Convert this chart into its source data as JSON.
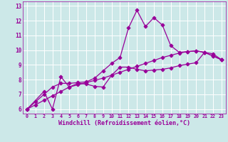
{
  "xlabel": "Windchill (Refroidissement éolien,°C)",
  "bg_color": "#cce8e8",
  "line_color": "#990099",
  "x_min": 0,
  "x_max": 23,
  "y_min": 6,
  "y_max": 13,
  "x_ticks": [
    0,
    1,
    2,
    3,
    4,
    5,
    6,
    7,
    8,
    9,
    10,
    11,
    12,
    13,
    14,
    15,
    16,
    17,
    18,
    19,
    20,
    21,
    22,
    23
  ],
  "y_ticks": [
    6,
    7,
    8,
    9,
    10,
    11,
    12,
    13
  ],
  "series1_x": [
    0,
    1,
    2,
    3,
    4,
    5,
    6,
    7,
    8,
    9,
    10,
    11,
    12,
    13,
    14,
    15,
    16,
    17,
    18,
    19,
    20,
    21,
    22,
    23
  ],
  "series1_y": [
    6.0,
    6.5,
    7.0,
    7.5,
    7.75,
    7.75,
    7.8,
    7.85,
    8.1,
    8.6,
    9.1,
    9.5,
    11.5,
    12.7,
    11.6,
    12.2,
    11.7,
    10.3,
    9.85,
    9.9,
    9.95,
    9.85,
    9.6,
    9.35
  ],
  "series2_x": [
    0,
    1,
    2,
    3,
    4,
    5,
    6,
    7,
    8,
    9,
    10,
    11,
    12,
    13,
    14,
    15,
    16,
    17,
    18,
    19,
    20,
    21,
    22,
    23
  ],
  "series2_y": [
    6.0,
    6.3,
    6.6,
    6.9,
    7.2,
    7.5,
    7.65,
    7.8,
    7.95,
    8.1,
    8.3,
    8.5,
    8.7,
    8.9,
    9.1,
    9.3,
    9.5,
    9.65,
    9.8,
    9.9,
    9.95,
    9.85,
    9.75,
    9.35
  ],
  "series3_x": [
    0,
    2,
    3,
    4,
    5,
    6,
    7,
    8,
    9,
    10,
    11,
    12,
    13,
    14,
    15,
    16,
    17,
    18,
    19,
    20,
    21,
    22,
    23
  ],
  "series3_y": [
    6.0,
    7.2,
    6.0,
    8.2,
    7.5,
    7.75,
    7.7,
    7.55,
    7.5,
    8.3,
    8.85,
    8.85,
    8.7,
    8.6,
    8.65,
    8.7,
    8.8,
    8.95,
    9.05,
    9.15,
    9.85,
    9.6,
    9.35
  ]
}
